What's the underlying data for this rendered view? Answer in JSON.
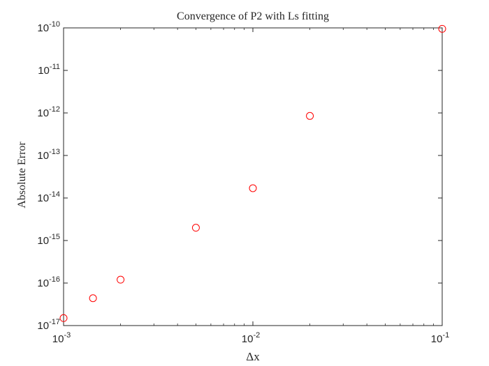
{
  "chart_data": {
    "type": "scatter",
    "title": "Convergence of P2 with Ls fitting",
    "xlabel": "Δx",
    "ylabel": "Absolute Error",
    "x_scale": "log",
    "y_scale": "log",
    "xlim": [
      0.001,
      0.1
    ],
    "ylim": [
      1e-17,
      1e-10
    ],
    "x_ticks": [
      {
        "base": "10",
        "exp": "-3"
      },
      {
        "base": "10",
        "exp": "-2"
      },
      {
        "base": "10",
        "exp": "-1"
      }
    ],
    "y_ticks": [
      {
        "base": "10",
        "exp": "-17"
      },
      {
        "base": "10",
        "exp": "-16"
      },
      {
        "base": "10",
        "exp": "-15"
      },
      {
        "base": "10",
        "exp": "-14"
      },
      {
        "base": "10",
        "exp": "-13"
      },
      {
        "base": "10",
        "exp": "-12"
      },
      {
        "base": "10",
        "exp": "-11"
      },
      {
        "base": "10",
        "exp": "-10"
      }
    ],
    "marker": "circle",
    "marker_color": "#ff0000",
    "grid": false,
    "series": [
      {
        "x": [
          0.001,
          0.00143,
          0.002,
          0.005,
          0.01,
          0.02,
          0.1
        ],
        "y": [
          1.5e-17,
          4.4e-17,
          1.2e-16,
          2e-15,
          1.7e-14,
          8.5e-13,
          9.5e-11
        ]
      }
    ]
  }
}
